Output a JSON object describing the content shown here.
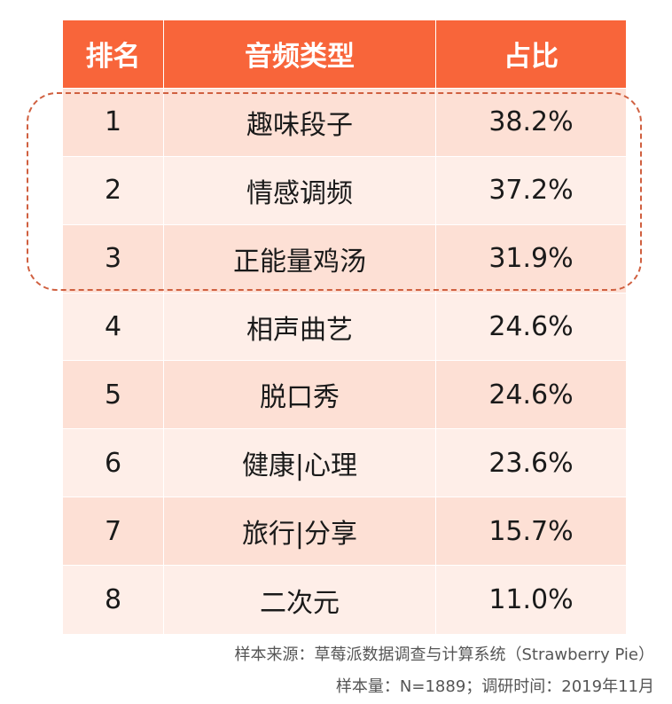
{
  "chart_data": {
    "type": "table",
    "columns": [
      "排名",
      "音频类型",
      "占比"
    ],
    "rows": [
      {
        "rank": "1",
        "type": "趣味段子",
        "share": "38.2%"
      },
      {
        "rank": "2",
        "type": "情感调频",
        "share": "37.2%"
      },
      {
        "rank": "3",
        "type": "正能量鸡汤",
        "share": "31.9%"
      },
      {
        "rank": "4",
        "type": "相声曲艺",
        "share": "24.6%"
      },
      {
        "rank": "5",
        "type": "脱口秀",
        "share": "24.6%"
      },
      {
        "rank": "6",
        "type": "健康|心理",
        "share": "23.6%"
      },
      {
        "rank": "7",
        "type": "旅行|分享",
        "share": "15.7%"
      },
      {
        "rank": "8",
        "type": "二次元",
        "share": "11.0%"
      }
    ],
    "highlighted_ranks": [
      "1",
      "2",
      "3"
    ]
  },
  "footer": {
    "source": "样本来源：草莓派数据调查与计算系统（Strawberry Pie）",
    "sample": "样本量：N=1889；调研时间：2019年11月"
  },
  "colors": {
    "header_bg": "#f8653a",
    "row_odd_bg": "#fde0d5",
    "row_even_bg": "#feeee8",
    "highlight_border": "#d06040"
  }
}
